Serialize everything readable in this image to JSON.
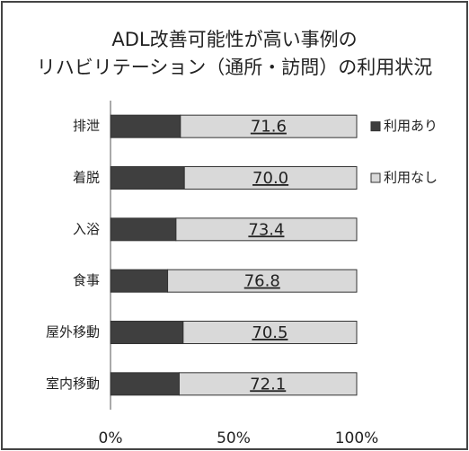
{
  "chart_data": {
    "type": "stacked_bar_horizontal",
    "title": [
      "ADL改善可能性が高い事例の",
      "リハビリテーション（通所・訪問）の利用状況"
    ],
    "categories": [
      "排泄",
      "着脱",
      "入浴",
      "食事",
      "屋外移動",
      "室内移動"
    ],
    "series": [
      {
        "name": "利用あり",
        "color": "#3f3f3f",
        "values": [
          28.4,
          30.0,
          26.6,
          23.2,
          29.5,
          27.9
        ]
      },
      {
        "name": "利用なし",
        "color": "#d9d9d9",
        "values": [
          71.6,
          70.0,
          73.4,
          76.8,
          70.5,
          72.1
        ],
        "value_labels": [
          "71.6",
          "70.0",
          "73.4",
          "76.8",
          "70.5",
          "72.1"
        ]
      }
    ],
    "xlim": [
      0,
      100
    ],
    "xticks": [
      {
        "value": 0,
        "label": "0%"
      },
      {
        "value": 50,
        "label": "50%"
      },
      {
        "value": 100,
        "label": "100%"
      }
    ],
    "legend": "right"
  }
}
